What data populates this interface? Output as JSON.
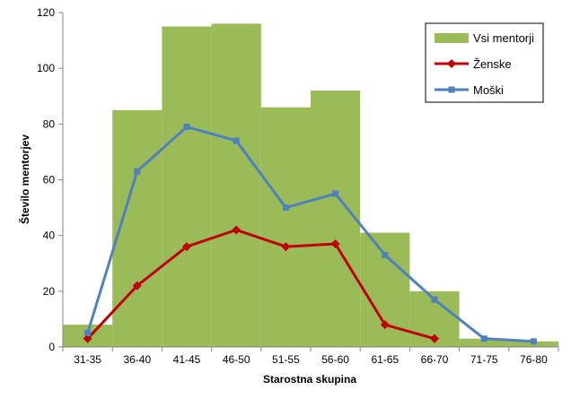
{
  "chart_data": {
    "type": "bar",
    "categories": [
      "31-35",
      "36-40",
      "41-45",
      "46-50",
      "51-55",
      "56-60",
      "61-65",
      "66-70",
      "71-75",
      "76-80"
    ],
    "xlabel": "Starostna skupina",
    "ylabel": "Število mentorjev",
    "ylim": [
      0,
      120
    ],
    "yticks": [
      0,
      20,
      40,
      60,
      80,
      100,
      120
    ],
    "grid": false,
    "legend_position": "top-right",
    "series": [
      {
        "name": "Vsi mentorji",
        "type": "bar",
        "color": "#9bbb59",
        "values": [
          8,
          85,
          115,
          116,
          86,
          92,
          41,
          20,
          3,
          2
        ]
      },
      {
        "name": "Ženske",
        "type": "line",
        "marker": "diamond",
        "color": "#c00000",
        "values": [
          3,
          22,
          36,
          42,
          36,
          37,
          8,
          3,
          null,
          null
        ]
      },
      {
        "name": "Moški",
        "type": "line",
        "marker": "square",
        "color": "#4f81bd",
        "values": [
          5,
          63,
          79,
          74,
          50,
          55,
          33,
          17,
          3,
          2
        ]
      }
    ]
  }
}
